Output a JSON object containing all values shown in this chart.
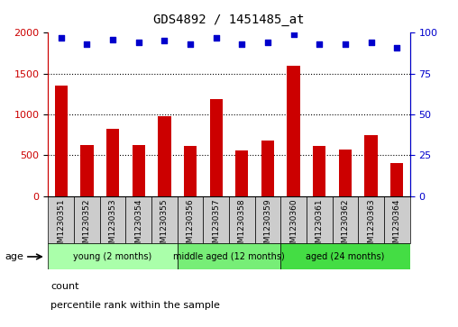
{
  "title": "GDS4892 / 1451485_at",
  "samples": [
    "GSM1230351",
    "GSM1230352",
    "GSM1230353",
    "GSM1230354",
    "GSM1230355",
    "GSM1230356",
    "GSM1230357",
    "GSM1230358",
    "GSM1230359",
    "GSM1230360",
    "GSM1230361",
    "GSM1230362",
    "GSM1230363",
    "GSM1230364"
  ],
  "counts": [
    1350,
    630,
    820,
    630,
    980,
    610,
    1190,
    560,
    685,
    1600,
    620,
    570,
    750,
    405
  ],
  "percentiles": [
    97,
    93,
    96,
    94,
    95,
    93,
    97,
    93,
    94,
    99,
    93,
    93,
    94,
    91
  ],
  "bar_color": "#cc0000",
  "dot_color": "#0000cc",
  "ylim_left": [
    0,
    2000
  ],
  "ylim_right": [
    0,
    100
  ],
  "yticks_left": [
    0,
    500,
    1000,
    1500,
    2000
  ],
  "yticks_right": [
    0,
    25,
    50,
    75,
    100
  ],
  "groups": [
    {
      "label": "young (2 months)",
      "start": 0,
      "end": 5,
      "color": "#aaffaa"
    },
    {
      "label": "middle aged (12 months)",
      "start": 5,
      "end": 9,
      "color": "#77ee77"
    },
    {
      "label": "aged (24 months)",
      "start": 9,
      "end": 14,
      "color": "#44dd44"
    }
  ],
  "cell_bg": "#cccccc",
  "plot_bg": "#ffffff",
  "title_color": "#000000",
  "left_axis_color": "#cc0000",
  "right_axis_color": "#0000cc",
  "bar_width": 0.5,
  "legend_items": [
    {
      "color": "#cc0000",
      "label": "count"
    },
    {
      "color": "#0000cc",
      "label": "percentile rank within the sample"
    }
  ]
}
